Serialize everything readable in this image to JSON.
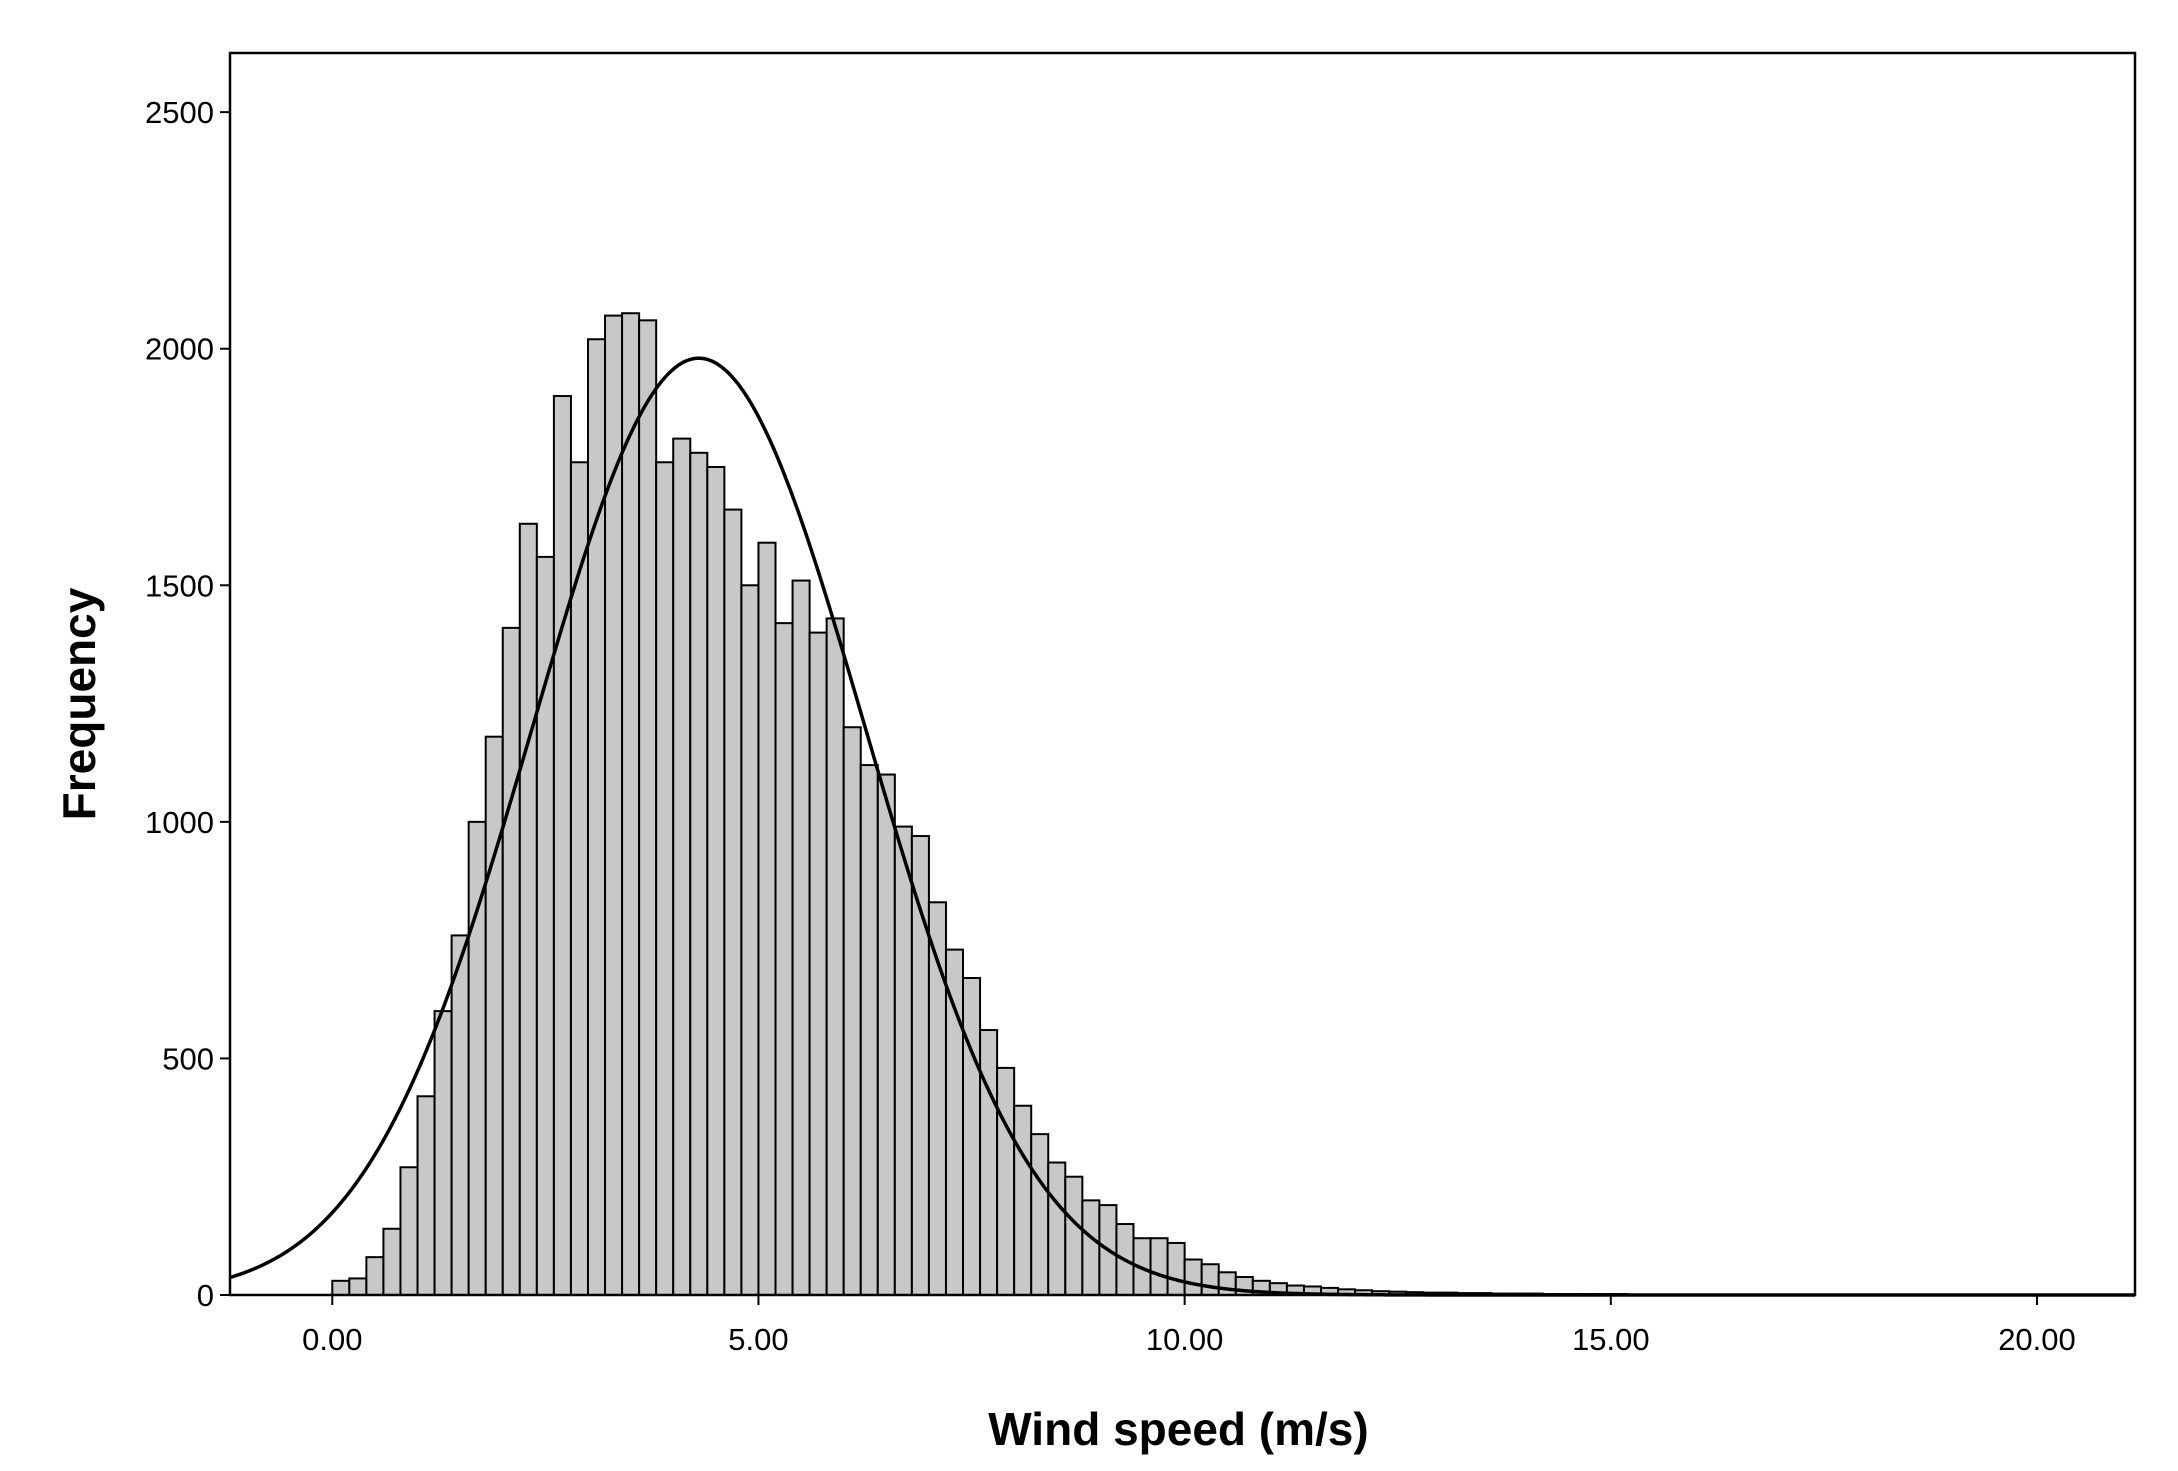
{
  "chart_data": {
    "type": "bar",
    "subtype": "histogram",
    "xlabel": "Wind speed (m/s)",
    "ylabel": "Frequency",
    "xlim": [
      -1.2,
      21.15
    ],
    "ylim": [
      0,
      2625
    ],
    "xticks": [
      0,
      5,
      10,
      15,
      20
    ],
    "xtick_labels": [
      "0.00",
      "5.00",
      "10.00",
      "15.00",
      "20.00"
    ],
    "yticks": [
      0,
      500,
      1000,
      1500,
      2000,
      2500
    ],
    "ytick_labels": [
      "0",
      "500",
      "1000",
      "1500",
      "2000",
      "2500"
    ],
    "grid": false,
    "legend": "none",
    "bar_color": "#c8c8c8",
    "bin_width": 0.2,
    "bin_start": 0.0,
    "values": [
      30,
      35,
      80,
      140,
      270,
      420,
      600,
      760,
      1000,
      1180,
      1410,
      1630,
      1560,
      1900,
      1760,
      2020,
      2070,
      2075,
      2060,
      1760,
      1810,
      1780,
      1750,
      1660,
      1500,
      1590,
      1420,
      1510,
      1400,
      1430,
      1200,
      1120,
      1100,
      990,
      970,
      830,
      730,
      670,
      560,
      480,
      400,
      340,
      280,
      250,
      200,
      190,
      150,
      120,
      120,
      110,
      75,
      65,
      48,
      38,
      30,
      25,
      20,
      18,
      15,
      12,
      10,
      8,
      7,
      6,
      5,
      5,
      4,
      4,
      3,
      3,
      3,
      2,
      2,
      2,
      2,
      2,
      1,
      1,
      1,
      1,
      1,
      1,
      1
    ],
    "normal_curve": {
      "mean": 4.3,
      "sd": 1.95,
      "peak": 1980
    }
  }
}
